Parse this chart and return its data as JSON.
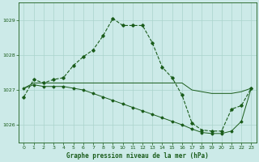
{
  "title": "Graphe pression niveau de la mer (hPa)",
  "background_color": "#cceae8",
  "grid_color": "#aad4cc",
  "line_color": "#1a5c1a",
  "xlim": [
    -0.5,
    23.5
  ],
  "ylim": [
    1025.5,
    1029.5
  ],
  "yticks": [
    1026,
    1027,
    1028,
    1029
  ],
  "xticks": [
    0,
    1,
    2,
    3,
    4,
    5,
    6,
    7,
    8,
    9,
    10,
    11,
    12,
    13,
    14,
    15,
    16,
    17,
    18,
    19,
    20,
    21,
    22,
    23
  ],
  "s1_x": [
    0,
    1,
    2,
    3,
    4,
    5,
    6,
    7,
    8,
    9,
    10,
    11,
    12,
    13,
    14,
    15,
    16,
    17,
    18,
    19,
    20,
    21,
    22,
    23
  ],
  "s1_y": [
    1026.8,
    1027.3,
    1027.2,
    1027.3,
    1027.35,
    1027.7,
    1027.95,
    1028.15,
    1028.55,
    1029.05,
    1028.85,
    1028.85,
    1028.85,
    1028.35,
    1027.65,
    1027.35,
    1026.85,
    1026.05,
    1025.85,
    1025.82,
    1025.82,
    1026.45,
    1026.55,
    1027.05
  ],
  "s2_x": [
    0,
    1,
    2,
    3,
    4,
    5,
    6,
    7,
    8,
    9,
    10,
    11,
    12,
    13,
    14,
    15,
    16,
    17,
    18,
    19,
    20,
    21,
    22,
    23
  ],
  "s2_y": [
    1027.05,
    1027.2,
    1027.2,
    1027.2,
    1027.2,
    1027.2,
    1027.2,
    1027.2,
    1027.2,
    1027.2,
    1027.2,
    1027.2,
    1027.2,
    1027.2,
    1027.2,
    1027.2,
    1027.2,
    1027.0,
    1026.95,
    1026.9,
    1026.9,
    1026.9,
    1026.95,
    1027.05
  ],
  "s3_x": [
    0,
    1,
    2,
    3,
    4,
    5,
    6,
    7,
    8,
    9,
    10,
    11,
    12,
    13,
    14,
    15,
    16,
    17,
    18,
    19,
    20,
    21,
    22,
    23
  ],
  "s3_y": [
    1027.05,
    1027.15,
    1027.1,
    1027.1,
    1027.1,
    1027.05,
    1027.0,
    1026.9,
    1026.8,
    1026.7,
    1026.6,
    1026.5,
    1026.4,
    1026.3,
    1026.2,
    1026.1,
    1026.0,
    1025.88,
    1025.78,
    1025.75,
    1025.75,
    1025.82,
    1026.1,
    1027.05
  ]
}
